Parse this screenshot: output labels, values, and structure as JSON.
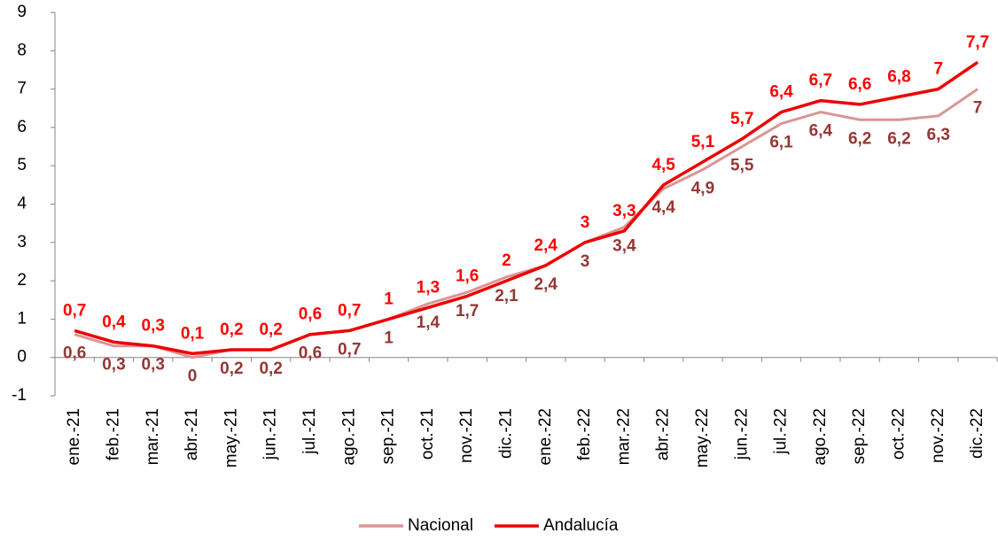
{
  "chart_data": {
    "type": "line",
    "categories": [
      "ene.-21",
      "feb.-21",
      "mar.-21",
      "abr.-21",
      "may.-21",
      "jun.-21",
      "jul.-21",
      "ago.-21",
      "sep.-21",
      "oct.-21",
      "nov.-21",
      "dic.-21",
      "ene.-22",
      "feb.-22",
      "mar.-22",
      "abr.-22",
      "may.-22",
      "jun.-22",
      "jul.-22",
      "ago.-22",
      "sep.-22",
      "oct.-22",
      "nov.-22",
      "dic.-22"
    ],
    "series": [
      {
        "name": "Nacional",
        "color": "#d99694",
        "label_color": "#953735",
        "label_position": "below",
        "values": [
          0.6,
          0.3,
          0.3,
          0,
          0.2,
          0.2,
          0.6,
          0.7,
          1,
          1.4,
          1.7,
          2.1,
          2.4,
          3,
          3.4,
          4.4,
          4.9,
          5.5,
          6.1,
          6.4,
          6.2,
          6.2,
          6.3,
          7
        ],
        "value_labels": [
          "0,6",
          "0,3",
          "0,3",
          "0",
          "0,2",
          "0,2",
          "0,6",
          "0,7",
          "1",
          "1,4",
          "1,7",
          "2,1",
          "2,4",
          "3",
          "3,4",
          "4,4",
          "4,9",
          "5,5",
          "6,1",
          "6,4",
          "6,2",
          "6,2",
          "6,3",
          "7"
        ]
      },
      {
        "name": "Andalucía",
        "color": "#ee0000",
        "label_color": "#ff0000",
        "label_position": "above",
        "values": [
          0.7,
          0.4,
          0.3,
          0.1,
          0.2,
          0.2,
          0.6,
          0.7,
          1,
          1.3,
          1.6,
          2,
          2.4,
          3,
          3.3,
          4.5,
          5.1,
          5.7,
          6.4,
          6.7,
          6.6,
          6.8,
          7,
          7.7
        ],
        "value_labels": [
          "0,7",
          "0,4",
          "0,3",
          "0,1",
          "0,2",
          "0,2",
          "0,6",
          "0,7",
          "1",
          "1,3",
          "1,6",
          "2",
          "2,4",
          "3",
          "3,3",
          "4,5",
          "5,1",
          "5,7",
          "6,4",
          "6,7",
          "6,6",
          "6,8",
          "7",
          "7,7"
        ]
      }
    ],
    "ylim": [
      -1,
      9
    ],
    "yticks": [
      -1,
      0,
      1,
      2,
      3,
      4,
      5,
      6,
      7,
      8,
      9
    ],
    "grid": false,
    "legend": "bottom"
  }
}
